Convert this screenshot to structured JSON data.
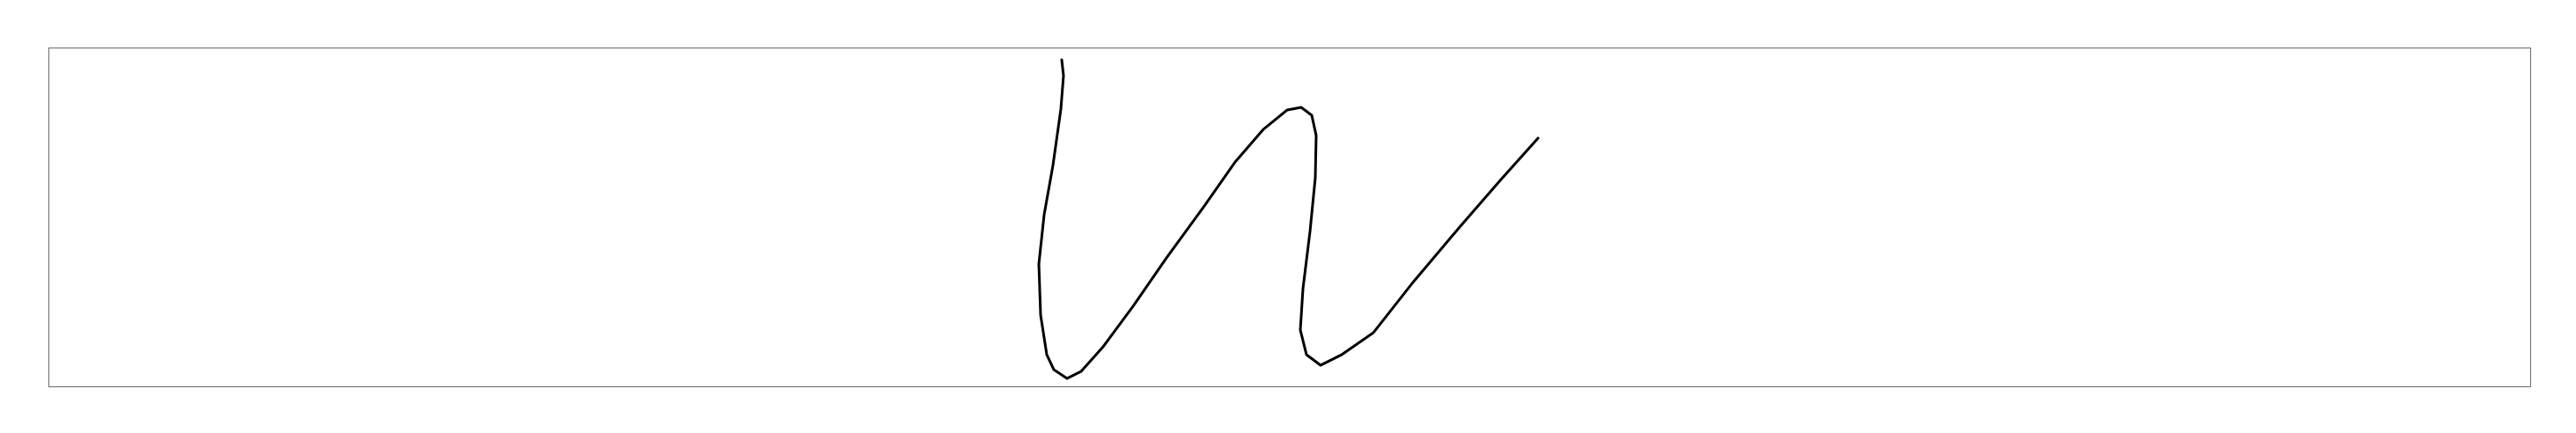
{
  "drawing": {
    "ink_color": "#000000",
    "frame_color": "#6b6b6b"
  }
}
